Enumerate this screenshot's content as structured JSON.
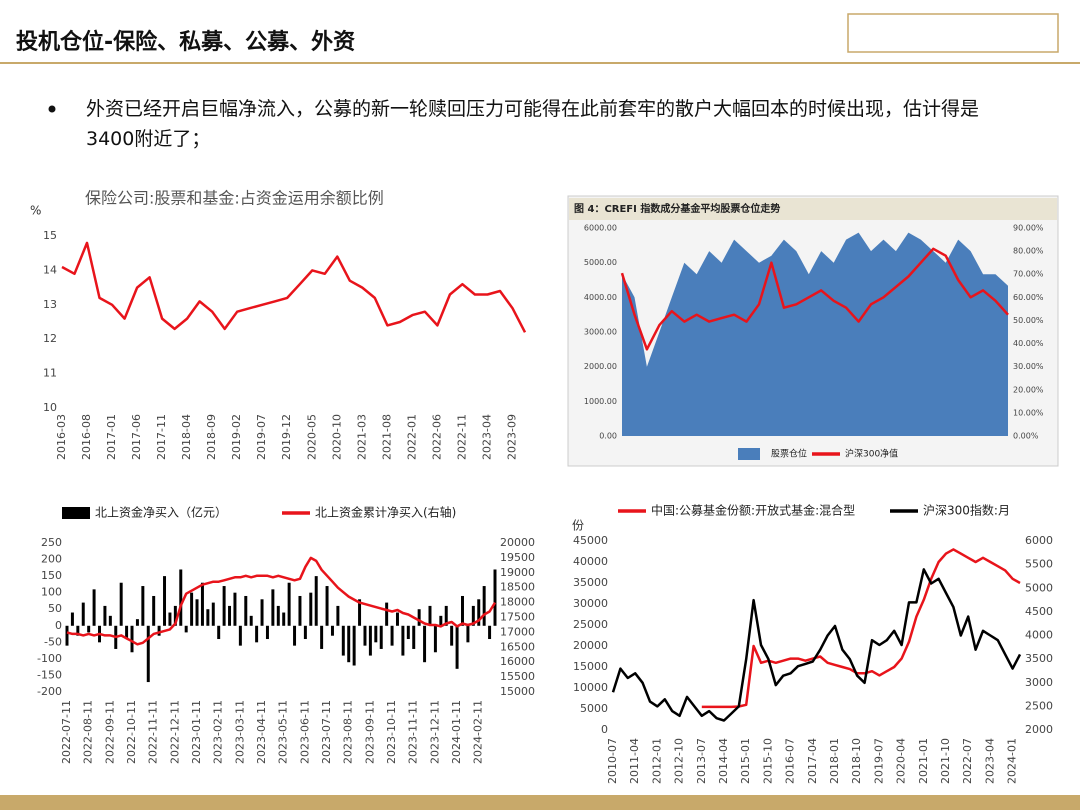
{
  "slide": {
    "title": "投机仓位-保险、私募、公募、外资",
    "bullet": "外资已经开启巨幅净流入，公募的新一轮赎回压力可能得在此前套牢的散户大幅回本的时候出现，估计得是3400附近了；"
  },
  "chart_data": [
    {
      "type": "line",
      "title": "保险公司:股票和基金:占资金运用余额比例",
      "y_label": "%",
      "color": "#e8141b",
      "categories": [
        "2016-03",
        null,
        "2016-08",
        null,
        "2017-01",
        null,
        "2017-06",
        null,
        "2017-11",
        null,
        "2018-04",
        null,
        "2018-09",
        null,
        "2019-02",
        null,
        "2019-07",
        null,
        "2019-12",
        null,
        "2020-05",
        null,
        "2020-10",
        null,
        "2021-03",
        null,
        "2021-08",
        null,
        "2022-01",
        null,
        "2022-06",
        null,
        "2022-11",
        null,
        "2023-04",
        null,
        "2023-09",
        null
      ],
      "values": [
        14.1,
        13.9,
        14.8,
        13.2,
        13.0,
        12.6,
        13.5,
        13.8,
        12.6,
        12.3,
        12.6,
        13.1,
        12.8,
        12.3,
        12.8,
        12.9,
        13.0,
        13.1,
        13.2,
        13.6,
        14.0,
        13.9,
        14.4,
        13.7,
        13.5,
        13.2,
        12.4,
        12.5,
        12.7,
        12.8,
        12.4,
        13.3,
        13.6,
        13.3,
        13.3,
        13.4,
        12.9,
        12.2
      ],
      "ylim": [
        10,
        15
      ],
      "yticks": [
        10,
        11,
        12,
        13,
        14,
        15
      ]
    },
    {
      "type": "combo",
      "title": "图 4：CREFI 指数成分基金平均股票仓位走势",
      "legend": "bottom",
      "categories": [
        null,
        null,
        null,
        null,
        null,
        null,
        null,
        null,
        null,
        null,
        null,
        null,
        null,
        null,
        null,
        null,
        null,
        null,
        null,
        null,
        null,
        null,
        null,
        null,
        null,
        null,
        null,
        null,
        null,
        null,
        null,
        null
      ],
      "series": [
        {
          "name": "股票仓位",
          "type": "area",
          "axis": "y2",
          "color": "#4a7ebb",
          "values": [
            70,
            60,
            30,
            45,
            60,
            75,
            70,
            80,
            75,
            85,
            80,
            75,
            78,
            85,
            80,
            70,
            80,
            75,
            85,
            88,
            80,
            85,
            80,
            88,
            85,
            80,
            75,
            85,
            80,
            70,
            70,
            65
          ]
        },
        {
          "name": "沪深300净值",
          "type": "line",
          "color": "#e8141b",
          "values": [
            4700,
            3500,
            2500,
            3200,
            3600,
            3300,
            3500,
            3300,
            3400,
            3500,
            3300,
            3800,
            5000,
            3700,
            3800,
            4000,
            4200,
            3900,
            3700,
            3300,
            3800,
            4000,
            4300,
            4600,
            5000,
            5400,
            5200,
            4500,
            4000,
            4200,
            3900,
            3500
          ]
        }
      ],
      "ylim": [
        0,
        6000
      ],
      "yticks": [
        {
          "value": 0,
          "label": "0.00"
        },
        {
          "value": 1000,
          "label": "1000.00"
        },
        {
          "value": 2000,
          "label": "2000.00"
        },
        {
          "value": 3000,
          "label": "3000.00"
        },
        {
          "value": 4000,
          "label": "4000.00"
        },
        {
          "value": 5000,
          "label": "5000.00"
        },
        {
          "value": 6000,
          "label": "6000.00"
        }
      ],
      "y2lim": [
        0,
        90
      ],
      "y2ticks": [
        {
          "value": 0,
          "label": "0.00%"
        },
        {
          "value": 10,
          "label": "10.00%"
        },
        {
          "value": 20,
          "label": "20.00%"
        },
        {
          "value": 30,
          "label": "30.00%"
        },
        {
          "value": 40,
          "label": "40.00%"
        },
        {
          "value": 50,
          "label": "50.00%"
        },
        {
          "value": 60,
          "label": "60.00%"
        },
        {
          "value": 70,
          "label": "70.00%"
        },
        {
          "value": 80,
          "label": "80.00%"
        },
        {
          "value": 90,
          "label": "90.00%"
        }
      ]
    },
    {
      "type": "combo",
      "legend": "top",
      "categories": [
        "2022-07-11",
        null,
        null,
        null,
        "2022-08-11",
        null,
        null,
        null,
        "2022-09-11",
        null,
        null,
        null,
        "2022-10-11",
        null,
        null,
        null,
        "2022-11-11",
        null,
        null,
        null,
        "2022-12-11",
        null,
        null,
        null,
        "2023-01-11",
        null,
        null,
        null,
        "2023-02-11",
        null,
        null,
        null,
        "2023-03-11",
        null,
        null,
        null,
        "2023-04-11",
        null,
        null,
        null,
        "2023-05-11",
        null,
        null,
        null,
        "2023-06-11",
        null,
        null,
        null,
        "2023-07-11",
        null,
        null,
        null,
        "2023-08-11",
        null,
        null,
        null,
        "2023-09-11",
        null,
        null,
        null,
        "2023-10-11",
        null,
        null,
        null,
        "2023-11-11",
        null,
        null,
        null,
        "2023-12-11",
        null,
        null,
        null,
        "2024-01-11",
        null,
        null,
        null,
        "2024-02-11",
        null,
        null,
        null
      ],
      "series": [
        {
          "name": "北上资金净买入（亿元）",
          "type": "bar",
          "color": "#000000",
          "values": [
            -60,
            40,
            -30,
            70,
            -20,
            110,
            -50,
            60,
            30,
            -70,
            130,
            -40,
            -80,
            20,
            120,
            -170,
            90,
            -30,
            150,
            40,
            60,
            170,
            -20,
            100,
            80,
            130,
            50,
            70,
            -40,
            120,
            60,
            100,
            -60,
            90,
            30,
            -50,
            80,
            -40,
            110,
            60,
            40,
            130,
            -60,
            90,
            -40,
            100,
            150,
            -70,
            120,
            -30,
            60,
            -90,
            -110,
            -120,
            80,
            -60,
            -90,
            -50,
            -70,
            70,
            -60,
            40,
            -90,
            -40,
            -70,
            50,
            -110,
            60,
            -80,
            30,
            60,
            -60,
            -130,
            90,
            -50,
            60,
            80,
            120,
            -40,
            170
          ]
        },
        {
          "name": "北上资金累计净买入(右轴)",
          "type": "line",
          "axis": "y2",
          "color": "#e8141b",
          "values": [
            17000,
            16950,
            16950,
            16900,
            16950,
            16900,
            16950,
            16900,
            16900,
            16850,
            16900,
            16800,
            16700,
            16600,
            16650,
            16800,
            16950,
            17000,
            17050,
            17100,
            17300,
            17900,
            18300,
            18400,
            18500,
            18600,
            18650,
            18700,
            18700,
            18750,
            18800,
            18850,
            18850,
            18900,
            18850,
            18900,
            18900,
            18900,
            18850,
            18900,
            18850,
            18800,
            18750,
            18800,
            19200,
            19500,
            19400,
            19100,
            18900,
            18700,
            18500,
            18350,
            18200,
            18100,
            18000,
            17950,
            17900,
            17850,
            17800,
            17750,
            17700,
            17750,
            17650,
            17600,
            17500,
            17400,
            17300,
            17250,
            17250,
            17200,
            17300,
            17350,
            17200,
            17300,
            17250,
            17300,
            17400,
            17600,
            17700,
            18000
          ]
        }
      ],
      "ylim": [
        -200,
        250
      ],
      "yticks": [
        -200,
        -150,
        -100,
        -50,
        0,
        50,
        100,
        150,
        200,
        250
      ],
      "y2lim": [
        15000,
        20000
      ],
      "y2ticks": [
        15000,
        15500,
        16000,
        16500,
        17000,
        17500,
        18000,
        18500,
        19000,
        19500,
        20000
      ]
    },
    {
      "type": "line",
      "legend": "top",
      "y_label": "份",
      "categories": [
        "2010-07",
        null,
        null,
        "2011-04",
        null,
        null,
        "2012-01",
        null,
        null,
        "2012-10",
        null,
        null,
        "2013-07",
        null,
        null,
        "2014-04",
        null,
        null,
        "2015-01",
        null,
        null,
        "2015-10",
        null,
        null,
        "2016-07",
        null,
        null,
        "2017-04",
        null,
        null,
        "2018-01",
        null,
        null,
        "2018-10",
        null,
        null,
        "2019-07",
        null,
        null,
        "2020-04",
        null,
        null,
        "2021-01",
        null,
        null,
        "2021-10",
        null,
        null,
        "2022-07",
        null,
        null,
        "2023-04",
        null,
        null,
        "2024-01",
        null
      ],
      "series": [
        {
          "name": "中国:公募基金份额:开放式基金:混合型",
          "color": "#e8141b",
          "values": [
            null,
            null,
            null,
            null,
            null,
            null,
            null,
            null,
            null,
            null,
            null,
            null,
            5500,
            5500,
            5500,
            5500,
            5500,
            5600,
            6000,
            20000,
            16000,
            16500,
            16000,
            16500,
            17000,
            17000,
            16500,
            17000,
            17500,
            16000,
            15500,
            15000,
            14500,
            13500,
            13500,
            14000,
            13000,
            14000,
            15000,
            17000,
            21000,
            27000,
            31000,
            36000,
            40000,
            42000,
            43000,
            42000,
            41000,
            40000,
            41000,
            40000,
            39000,
            38000,
            36000,
            35000
          ]
        },
        {
          "name": "沪深300指数:月",
          "axis": "y2",
          "color": "#000000",
          "values": [
            2800,
            3300,
            3100,
            3200,
            3000,
            2600,
            2500,
            2650,
            2400,
            2300,
            2700,
            2500,
            2300,
            2400,
            2250,
            2200,
            2350,
            2500,
            3500,
            4750,
            3800,
            3500,
            2950,
            3150,
            3200,
            3350,
            3400,
            3450,
            3700,
            4000,
            4200,
            3700,
            3500,
            3150,
            3000,
            3900,
            3800,
            3900,
            4100,
            3800,
            4700,
            4700,
            5400,
            5100,
            5200,
            4900,
            4600,
            4000,
            4400,
            3700,
            4100,
            4000,
            3900,
            3600,
            3300,
            3600
          ]
        }
      ],
      "ylim": [
        0,
        45000
      ],
      "yticks": [
        0,
        5000,
        10000,
        15000,
        20000,
        25000,
        30000,
        35000,
        40000,
        45000
      ],
      "y2lim": [
        2000,
        6000
      ],
      "y2ticks": [
        2000,
        2500,
        3000,
        3500,
        4000,
        4500,
        5000,
        5500,
        6000
      ]
    }
  ]
}
